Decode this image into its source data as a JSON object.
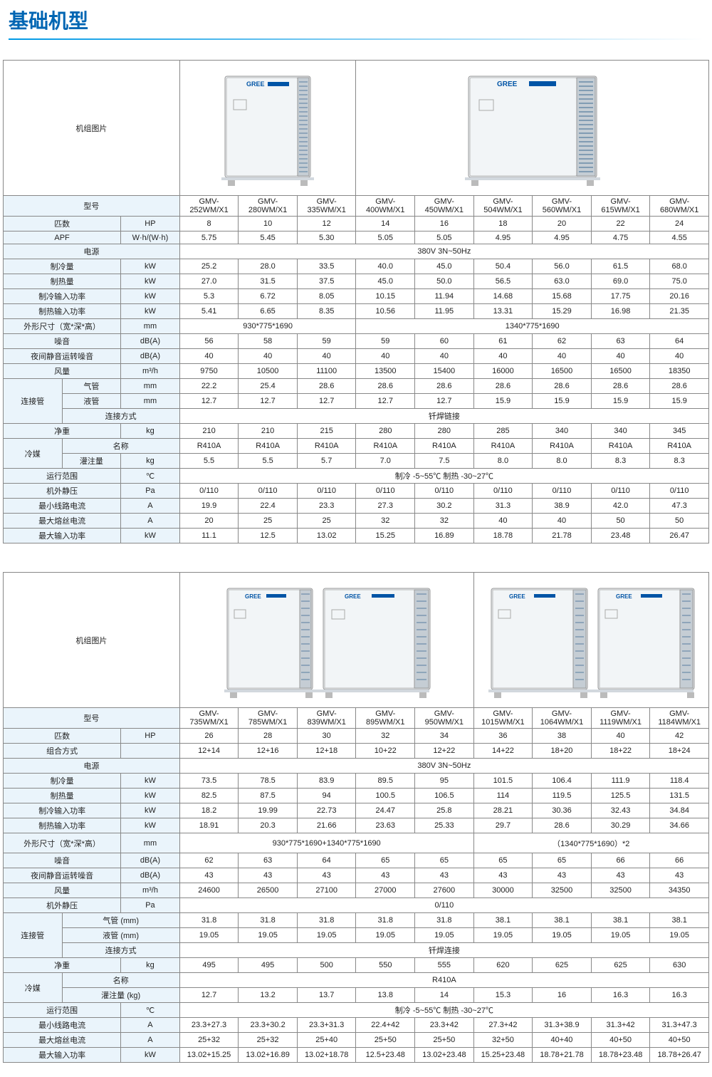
{
  "page_title": "基础机型",
  "table1": {
    "img_label": "机组图片",
    "model_label": "型号",
    "models": [
      "GMV-252WM/X1",
      "GMV-280WM/X1",
      "GMV-335WM/X1",
      "GMV-400WM/X1",
      "GMV-450WM/X1",
      "GMV-504WM/X1",
      "GMV-560WM/X1",
      "GMV-615WM/X1",
      "GMV-680WM/X1"
    ],
    "rows": [
      {
        "label": "匹数",
        "unit": "HP",
        "vals": [
          "8",
          "10",
          "12",
          "14",
          "16",
          "18",
          "20",
          "22",
          "24"
        ]
      },
      {
        "label": "APF",
        "unit": "W·h/(W·h)",
        "vals": [
          "5.75",
          "5.45",
          "5.30",
          "5.05",
          "5.05",
          "4.95",
          "4.95",
          "4.75",
          "4.55"
        ]
      }
    ],
    "power": {
      "label": "电源",
      "val": "380V 3N~50Hz"
    },
    "rows2": [
      {
        "label": "制冷量",
        "unit": "kW",
        "vals": [
          "25.2",
          "28.0",
          "33.5",
          "40.0",
          "45.0",
          "50.4",
          "56.0",
          "61.5",
          "68.0"
        ]
      },
      {
        "label": "制热量",
        "unit": "kW",
        "vals": [
          "27.0",
          "31.5",
          "37.5",
          "45.0",
          "50.0",
          "56.5",
          "63.0",
          "69.0",
          "75.0"
        ]
      },
      {
        "label": "制冷输入功率",
        "unit": "kW",
        "vals": [
          "5.3",
          "6.72",
          "8.05",
          "10.15",
          "11.94",
          "14.68",
          "15.68",
          "17.75",
          "20.16"
        ]
      },
      {
        "label": "制热输入功率",
        "unit": "kW",
        "vals": [
          "5.41",
          "6.65",
          "8.35",
          "10.56",
          "11.95",
          "13.31",
          "15.29",
          "16.98",
          "21.35"
        ]
      }
    ],
    "dims": {
      "label": "外形尺寸（宽*深*高）",
      "unit": "mm",
      "g1": "930*775*1690",
      "g2": "1340*775*1690"
    },
    "rows3": [
      {
        "label": "噪音",
        "unit": "dB(A)",
        "vals": [
          "56",
          "58",
          "59",
          "59",
          "60",
          "61",
          "62",
          "63",
          "64"
        ]
      },
      {
        "label": "夜间静音运转噪音",
        "unit": "dB(A)",
        "vals": [
          "40",
          "40",
          "40",
          "40",
          "40",
          "40",
          "40",
          "40",
          "40"
        ]
      },
      {
        "label": "风量",
        "unit": "m³/h",
        "vals": [
          "9750",
          "10500",
          "11100",
          "13500",
          "15400",
          "16000",
          "16500",
          "16500",
          "18350"
        ]
      }
    ],
    "pipe": {
      "group": "连接管",
      "gas": {
        "label": "气管",
        "unit": "mm",
        "vals": [
          "22.2",
          "25.4",
          "28.6",
          "28.6",
          "28.6",
          "28.6",
          "28.6",
          "28.6",
          "28.6"
        ]
      },
      "liq": {
        "label": "液管",
        "unit": "mm",
        "vals": [
          "12.7",
          "12.7",
          "12.7",
          "12.7",
          "12.7",
          "15.9",
          "15.9",
          "15.9",
          "15.9"
        ]
      },
      "conn": {
        "label": "连接方式",
        "val": "钎焊链接"
      }
    },
    "weight": {
      "label": "净重",
      "unit": "kg",
      "vals": [
        "210",
        "210",
        "215",
        "280",
        "280",
        "285",
        "340",
        "340",
        "345"
      ]
    },
    "refrig": {
      "group": "冷媒",
      "name": {
        "label": "名称",
        "vals": [
          "R410A",
          "R410A",
          "R410A",
          "R410A",
          "R410A",
          "R410A",
          "R410A",
          "R410A",
          "R410A"
        ]
      },
      "charge": {
        "label": "灌注量",
        "unit": "kg",
        "vals": [
          "5.5",
          "5.5",
          "5.7",
          "7.0",
          "7.5",
          "8.0",
          "8.0",
          "8.3",
          "8.3"
        ]
      }
    },
    "range": {
      "label": "运行范围",
      "unit": "℃",
      "val": "制冷 -5~55℃ 制热 -30~27℃"
    },
    "rows4": [
      {
        "label": "机外静压",
        "unit": "Pa",
        "vals": [
          "0/110",
          "0/110",
          "0/110",
          "0/110",
          "0/110",
          "0/110",
          "0/110",
          "0/110",
          "0/110"
        ]
      },
      {
        "label": "最小线路电流",
        "unit": "A",
        "vals": [
          "19.9",
          "22.4",
          "23.3",
          "27.3",
          "30.2",
          "31.3",
          "38.9",
          "42.0",
          "47.3"
        ]
      },
      {
        "label": "最大熔丝电流",
        "unit": "A",
        "vals": [
          "20",
          "25",
          "25",
          "32",
          "32",
          "40",
          "40",
          "50",
          "50"
        ]
      },
      {
        "label": "最大输入功率",
        "unit": "kW",
        "vals": [
          "11.1",
          "12.5",
          "13.02",
          "15.25",
          "16.89",
          "18.78",
          "21.78",
          "23.48",
          "26.47"
        ]
      }
    ]
  },
  "table2": {
    "img_label": "机组图片",
    "model_label": "型号",
    "models": [
      "GMV-735WM/X1",
      "GMV-785WM/X1",
      "GMV-839WM/X1",
      "GMV-895WM/X1",
      "GMV-950WM/X1",
      "GMV-1015WM/X1",
      "GMV-1064WM/X1",
      "GMV-1119WM/X1",
      "GMV-1184WM/X1"
    ],
    "rows": [
      {
        "label": "匹数",
        "unit": "HP",
        "vals": [
          "26",
          "28",
          "30",
          "32",
          "34",
          "36",
          "38",
          "40",
          "42"
        ]
      },
      {
        "label": "组合方式",
        "unit": "",
        "vals": [
          "12+14",
          "12+16",
          "12+18",
          "10+22",
          "12+22",
          "14+22",
          "18+20",
          "18+22",
          "18+24"
        ]
      }
    ],
    "power": {
      "label": "电源",
      "val": "380V 3N~50Hz"
    },
    "rows2": [
      {
        "label": "制冷量",
        "unit": "kW",
        "vals": [
          "73.5",
          "78.5",
          "83.9",
          "89.5",
          "95",
          "101.5",
          "106.4",
          "111.9",
          "118.4"
        ]
      },
      {
        "label": "制热量",
        "unit": "kW",
        "vals": [
          "82.5",
          "87.5",
          "94",
          "100.5",
          "106.5",
          "114",
          "119.5",
          "125.5",
          "131.5"
        ]
      },
      {
        "label": "制冷输入功率",
        "unit": "kW",
        "vals": [
          "18.2",
          "19.99",
          "22.73",
          "24.47",
          "25.8",
          "28.21",
          "30.36",
          "32.43",
          "34.84"
        ]
      },
      {
        "label": "制热输入功率",
        "unit": "kW",
        "vals": [
          "18.91",
          "20.3",
          "21.66",
          "23.63",
          "25.33",
          "29.7",
          "28.6",
          "30.29",
          "34.66"
        ]
      }
    ],
    "dims": {
      "label": "外形尺寸（宽*深*高）",
      "unit": "mm",
      "g1": "930*775*1690+1340*775*1690",
      "g2": "（1340*775*1690）*2"
    },
    "rows3": [
      {
        "label": "噪音",
        "unit": "dB(A)",
        "vals": [
          "62",
          "63",
          "64",
          "65",
          "65",
          "65",
          "65",
          "66",
          "66"
        ]
      },
      {
        "label": "夜间静音运转噪音",
        "unit": "dB(A)",
        "vals": [
          "43",
          "43",
          "43",
          "43",
          "43",
          "43",
          "43",
          "43",
          "43"
        ]
      },
      {
        "label": "风量",
        "unit": "m³/h",
        "vals": [
          "24600",
          "26500",
          "27100",
          "27000",
          "27600",
          "30000",
          "32500",
          "32500",
          "34350"
        ]
      }
    ],
    "static": {
      "label": "机外静压",
      "unit": "Pa",
      "val": "0/110"
    },
    "pipe": {
      "group": "连接管",
      "gas": {
        "label": "气管 (mm)",
        "vals": [
          "31.8",
          "31.8",
          "31.8",
          "31.8",
          "31.8",
          "38.1",
          "38.1",
          "38.1",
          "38.1"
        ]
      },
      "liq": {
        "label": "液管 (mm)",
        "vals": [
          "19.05",
          "19.05",
          "19.05",
          "19.05",
          "19.05",
          "19.05",
          "19.05",
          "19.05",
          "19.05"
        ]
      },
      "conn": {
        "label": "连接方式",
        "val": "钎焊连接"
      }
    },
    "weight": {
      "label": "净重",
      "unit": "kg",
      "vals": [
        "495",
        "495",
        "500",
        "550",
        "555",
        "620",
        "625",
        "625",
        "630"
      ]
    },
    "refrig": {
      "group": "冷媒",
      "name": {
        "label": "名称",
        "val": "R410A"
      },
      "charge": {
        "label": "灌注量 (kg)",
        "vals": [
          "12.7",
          "13.2",
          "13.7",
          "13.8",
          "14",
          "15.3",
          "16",
          "16.3",
          "16.3"
        ]
      }
    },
    "range": {
      "label": "运行范围",
      "unit": "℃",
      "val": "制冷 -5~55℃ 制热 -30~27℃"
    },
    "rows4": [
      {
        "label": "最小线路电流",
        "unit": "A",
        "vals": [
          "23.3+27.3",
          "23.3+30.2",
          "23.3+31.3",
          "22.4+42",
          "23.3+42",
          "27.3+42",
          "31.3+38.9",
          "31.3+42",
          "31.3+47.3"
        ]
      },
      {
        "label": "最大熔丝电流",
        "unit": "A",
        "vals": [
          "25+32",
          "25+32",
          "25+40",
          "25+50",
          "25+50",
          "32+50",
          "40+40",
          "40+50",
          "40+50"
        ]
      },
      {
        "label": "最大输入功率",
        "unit": "kW",
        "vals": [
          "13.02+15.25",
          "13.02+16.89",
          "13.02+18.78",
          "12.5+23.48",
          "13.02+23.48",
          "15.25+23.48",
          "18.78+21.78",
          "18.78+23.48",
          "18.78+26.47"
        ]
      }
    ]
  },
  "colors": {
    "title": "#0066b3",
    "label_bg": "#eaf4fb",
    "border": "#888",
    "unit_body": "#e8ecef",
    "unit_dark": "#c5cdd4",
    "unit_blue": "#6b8ba8",
    "gree_blue": "#0054a6"
  }
}
